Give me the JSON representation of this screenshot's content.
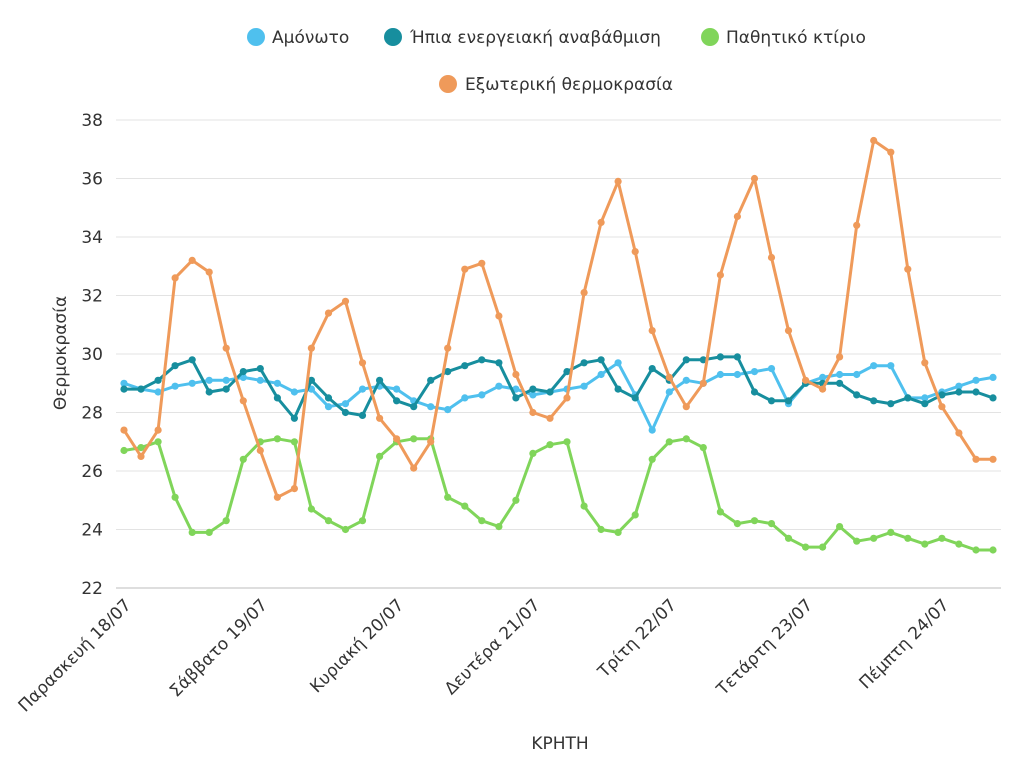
{
  "chart_data": {
    "type": "line",
    "xlabel": "ΚΡΗΤΗ",
    "ylabel": "Θερμοκρασία",
    "ylim": [
      22,
      38
    ],
    "yticks": [
      22,
      24,
      26,
      28,
      30,
      32,
      34,
      36,
      38
    ],
    "grid": "horizontal",
    "legend_position": "top",
    "x_points": 52,
    "x_tick_labels": [
      {
        "label": "Παρασκευή 18/07",
        "index": 0
      },
      {
        "label": "Σάββατο 19/07",
        "index": 8
      },
      {
        "label": "Κυριακή 20/07",
        "index": 16
      },
      {
        "label": "Δευτέρα 21/07",
        "index": 24
      },
      {
        "label": "Τρίτη 22/07",
        "index": 32
      },
      {
        "label": "Τετάρτη 23/07",
        "index": 40
      },
      {
        "label": "Πέμπτη 24/07",
        "index": 48
      }
    ],
    "series": [
      {
        "name": "Αμόνωτο",
        "color": "#4fc0ee",
        "values": [
          29.0,
          28.8,
          28.7,
          28.9,
          29.0,
          29.1,
          29.1,
          29.2,
          29.1,
          29.0,
          28.7,
          28.8,
          28.2,
          28.3,
          28.8,
          28.9,
          28.8,
          28.4,
          28.2,
          28.1,
          28.5,
          28.6,
          28.9,
          28.8,
          28.6,
          28.7,
          28.8,
          28.9,
          29.3,
          29.7,
          28.6,
          27.4,
          28.7,
          29.1,
          29.0,
          29.3,
          29.3,
          29.4,
          29.5,
          28.3,
          29.0,
          29.2,
          29.3,
          29.3,
          29.6,
          29.6,
          28.5,
          28.5,
          28.7,
          28.9,
          29.1,
          29.2
        ]
      },
      {
        "name": "Ήπια ενεργειακή αναβάθμιση",
        "color": "#178e9e",
        "values": [
          28.8,
          28.8,
          29.1,
          29.6,
          29.8,
          28.7,
          28.8,
          29.4,
          29.5,
          28.5,
          27.8,
          29.1,
          28.5,
          28.0,
          27.9,
          29.1,
          28.4,
          28.2,
          29.1,
          29.4,
          29.6,
          29.8,
          29.7,
          28.5,
          28.8,
          28.7,
          29.4,
          29.7,
          29.8,
          28.8,
          28.5,
          29.5,
          29.1,
          29.8,
          29.8,
          29.9,
          29.9,
          28.7,
          28.4,
          28.4,
          29.0,
          29.0,
          29.0,
          28.6,
          28.4,
          28.3,
          28.5,
          28.3,
          28.6,
          28.7,
          28.7,
          28.5
        ]
      },
      {
        "name": "Παθητικό κτίριο",
        "color": "#80d55a",
        "values": [
          26.7,
          26.8,
          27.0,
          25.1,
          23.9,
          23.9,
          24.3,
          26.4,
          27.0,
          27.1,
          27.0,
          24.7,
          24.3,
          24.0,
          24.3,
          26.5,
          27.0,
          27.1,
          27.1,
          25.1,
          24.8,
          24.3,
          24.1,
          25.0,
          26.6,
          26.9,
          27.0,
          24.8,
          24.0,
          23.9,
          24.5,
          26.4,
          27.0,
          27.1,
          26.8,
          24.6,
          24.2,
          24.3,
          24.2,
          23.7,
          23.4,
          23.4,
          24.1,
          23.6,
          23.7,
          23.9,
          23.7,
          23.5,
          23.7,
          23.5,
          23.3,
          23.3
        ]
      },
      {
        "name": "Εξωτερική θερμοκρασία",
        "color": "#ef9a5a",
        "values": [
          27.4,
          26.5,
          27.4,
          32.6,
          33.2,
          32.8,
          30.2,
          28.4,
          26.7,
          25.1,
          25.4,
          30.2,
          31.4,
          31.8,
          29.7,
          27.8,
          27.1,
          26.1,
          27.0,
          30.2,
          32.9,
          33.1,
          31.3,
          29.3,
          28.0,
          27.8,
          28.5,
          32.1,
          34.5,
          35.9,
          33.5,
          30.8,
          29.2,
          28.2,
          29.0,
          32.7,
          34.7,
          36.0,
          33.3,
          30.8,
          29.1,
          28.8,
          29.9,
          34.4,
          37.3,
          36.9,
          32.9,
          29.7,
          28.2,
          27.3,
          26.4,
          26.4
        ]
      }
    ]
  }
}
